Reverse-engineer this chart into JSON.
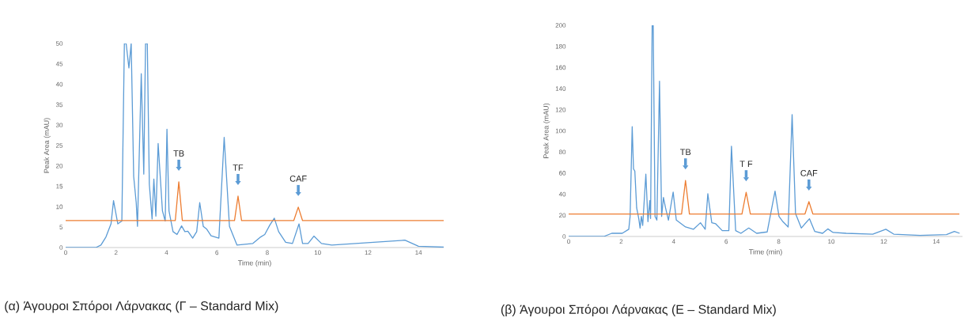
{
  "chart_data": [
    {
      "type": "line",
      "title": "(α) Άγουροι Σπόροι Λάρνακας (Γ – Standard Mix)",
      "xlabel": "Time (min)",
      "ylabel": "Peak Area (mAU)",
      "xlim": [
        0,
        15
      ],
      "ylim": [
        0,
        50
      ],
      "xticks": [
        0,
        2,
        4,
        6,
        8,
        10,
        12,
        14
      ],
      "yticks": [
        0,
        5,
        10,
        15,
        20,
        25,
        30,
        35,
        40,
        45,
        50
      ],
      "series": [
        {
          "color": "#5b9bd5",
          "x": [
            0,
            1.2,
            1.4,
            1.6,
            1.8,
            1.9,
            2.07,
            2.23,
            2.33,
            2.4,
            2.51,
            2.6,
            2.7,
            2.8,
            2.85,
            3.0,
            3.1,
            3.17,
            3.24,
            3.32,
            3.43,
            3.5,
            3.58,
            3.67,
            3.74,
            3.84,
            3.95,
            4.02,
            4.1,
            4.26,
            4.42,
            4.6,
            4.73,
            4.85,
            5.04,
            5.2,
            5.32,
            5.46,
            5.6,
            5.77,
            6.08,
            6.29,
            6.5,
            6.8,
            7.43,
            7.74,
            7.9,
            8.1,
            8.28,
            8.45,
            8.73,
            9.0,
            9.26,
            9.4,
            9.62,
            9.85,
            10.15,
            10.56,
            13.46,
            14.0,
            15.0
          ],
          "values": [
            0,
            0,
            0.6,
            2.6,
            5.8,
            11.5,
            5.8,
            6.5,
            50,
            50,
            44,
            50,
            17.4,
            11,
            5.2,
            42.6,
            18,
            50,
            50,
            15.5,
            7,
            16.8,
            7.7,
            25.5,
            18.7,
            9,
            6.5,
            29,
            9,
            3.9,
            3.2,
            5.3,
            3.9,
            4,
            2.3,
            3.9,
            11,
            5.2,
            4.5,
            2.9,
            2.3,
            27,
            5.2,
            0.6,
            1.0,
            2.6,
            3.2,
            5.5,
            7.2,
            3.9,
            1.3,
            1.0,
            5.8,
            1.0,
            1.0,
            2.8,
            1.0,
            0.6,
            1.8,
            0.3,
            0.1
          ]
        },
        {
          "color": "#ed7d31",
          "x": [
            0,
            4.35,
            4.49,
            4.63,
            6.7,
            6.84,
            6.98,
            9.05,
            9.23,
            9.4,
            15
          ],
          "values": [
            6.6,
            6.6,
            16.1,
            6.6,
            6.6,
            12.6,
            6.6,
            6.6,
            9.9,
            6.6,
            6.6
          ]
        }
      ],
      "annotations": [
        {
          "text": "TB",
          "x": 4.49,
          "y": 16.1
        },
        {
          "text": "TF",
          "x": 6.84,
          "y": 12.6
        },
        {
          "text": "CAF",
          "x": 9.23,
          "y": 9.9
        }
      ]
    },
    {
      "type": "line",
      "title": "(β) Άγουροι Σπόροι Λάρνακας (Ε – Standard Mix)",
      "xlabel": "Time (min)",
      "ylabel": "Peak Area (mAU)",
      "xlim": [
        0,
        15
      ],
      "ylim": [
        0,
        200
      ],
      "xticks": [
        0,
        2,
        4,
        6,
        8,
        10,
        12,
        14
      ],
      "yticks": [
        0,
        20,
        40,
        60,
        80,
        100,
        120,
        140,
        160,
        180,
        200
      ],
      "series": [
        {
          "color": "#5b9bd5",
          "x": [
            0,
            1.34,
            1.64,
            2.04,
            2.29,
            2.34,
            2.42,
            2.47,
            2.52,
            2.59,
            2.67,
            2.72,
            2.77,
            2.82,
            2.94,
            3.02,
            3.09,
            3.12,
            3.18,
            3.22,
            3.29,
            3.36,
            3.46,
            3.54,
            3.61,
            3.69,
            3.8,
            3.98,
            4.1,
            4.45,
            4.75,
            5.02,
            5.2,
            5.3,
            5.45,
            5.6,
            5.85,
            6.1,
            6.2,
            6.36,
            6.56,
            6.86,
            7.16,
            7.56,
            7.86,
            8.01,
            8.16,
            8.36,
            8.51,
            8.64,
            8.86,
            9.17,
            9.37,
            9.67,
            9.87,
            10.07,
            10.57,
            11.58,
            12.08,
            12.38,
            13.38,
            14.39,
            14.69,
            14.89
          ],
          "values": [
            0,
            0,
            3,
            3,
            6.8,
            19,
            104,
            64,
            62,
            27,
            17,
            8,
            19,
            10.5,
            59,
            14,
            34,
            17,
            200,
            200,
            19,
            15.5,
            147,
            19,
            37,
            27,
            15.5,
            42,
            15.5,
            9,
            6.8,
            13,
            6.8,
            40.5,
            13,
            12,
            5.5,
            5.5,
            85.5,
            5.5,
            3,
            8,
            3,
            4.3,
            43,
            19,
            14,
            9,
            115.5,
            21.8,
            8,
            16.8,
            4.8,
            3,
            7.2,
            3.8,
            3,
            2.2,
            6.8,
            2.2,
            1,
            1.8,
            4.8,
            3
          ]
        },
        {
          "color": "#ed7d31",
          "x": [
            0,
            4.3,
            4.45,
            4.6,
            6.6,
            6.76,
            6.92,
            9.0,
            9.15,
            9.3,
            14.88
          ],
          "values": [
            21.3,
            21.3,
            53,
            21.3,
            21.3,
            41.8,
            21.3,
            21.3,
            33,
            21.3,
            21.3
          ]
        }
      ],
      "annotations": [
        {
          "text": "TB",
          "x": 4.45,
          "y": 53
        },
        {
          "text": "T F",
          "x": 6.76,
          "y": 41.8
        },
        {
          "text": "CAF",
          "x": 9.15,
          "y": 33
        }
      ]
    }
  ]
}
